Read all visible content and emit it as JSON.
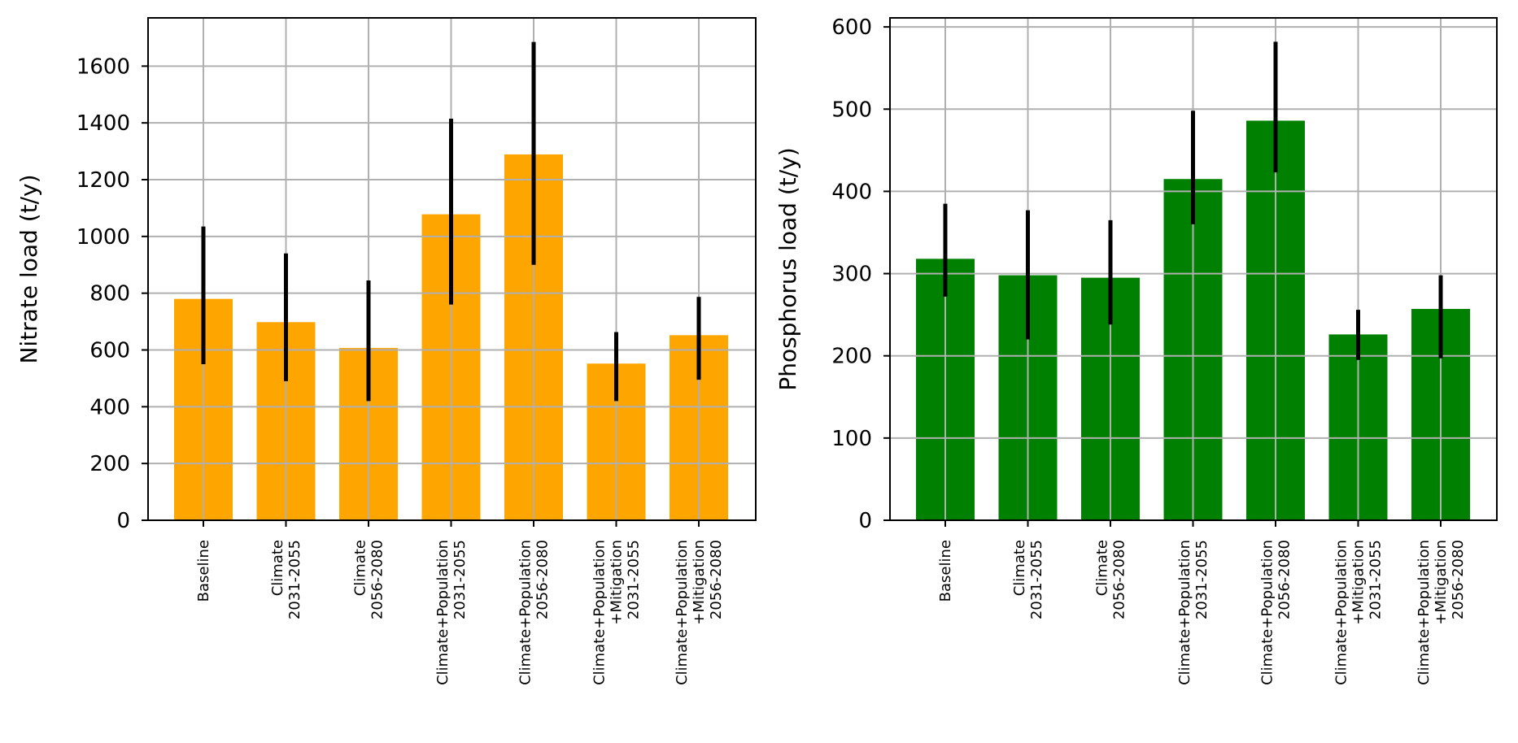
{
  "chart_data": [
    {
      "type": "bar",
      "ylabel": "Nitrate load (t/y)",
      "xlabel": "",
      "title": "",
      "ylim": [
        0,
        1770
      ],
      "yticks": [
        0,
        200,
        400,
        600,
        800,
        1000,
        1200,
        1400,
        1600
      ],
      "grid": true,
      "bar_color": "#FFA500",
      "errorbar_color": "#000000",
      "categories": [
        [
          "Baseline"
        ],
        [
          "Climate",
          "2031-2055"
        ],
        [
          "Climate",
          "2056-2080"
        ],
        [
          "Climate+Population",
          "2031-2055"
        ],
        [
          "Climate+Population",
          "2056-2080"
        ],
        [
          "Climate+Population",
          "+Mitigation",
          "2031-2055"
        ],
        [
          "Climate+Population",
          "+Mitigation",
          "2056-2080"
        ]
      ],
      "values": [
        780,
        698,
        607,
        1078,
        1289,
        552,
        652
      ],
      "error_low": [
        550,
        490,
        420,
        760,
        900,
        420,
        495
      ],
      "error_high": [
        1035,
        940,
        845,
        1415,
        1685,
        663,
        787
      ]
    },
    {
      "type": "bar",
      "ylabel": "Phosphorus load (t/y)",
      "xlabel": "",
      "title": "",
      "ylim": [
        0,
        611
      ],
      "yticks": [
        0,
        100,
        200,
        300,
        400,
        500,
        600
      ],
      "grid": true,
      "bar_color": "#008000",
      "errorbar_color": "#000000",
      "categories": [
        [
          "Baseline"
        ],
        [
          "Climate",
          "2031-2055"
        ],
        [
          "Climate",
          "2056-2080"
        ],
        [
          "Climate+Population",
          "2031-2055"
        ],
        [
          "Climate+Population",
          "2056-2080"
        ],
        [
          "Climate+Population",
          "+Mitigation",
          "2031-2055"
        ],
        [
          "Climate+Population",
          "+Mitigation",
          "2056-2080"
        ]
      ],
      "values": [
        318,
        298,
        295,
        415,
        486,
        226,
        257
      ],
      "error_low": [
        272,
        220,
        238,
        360,
        423,
        195,
        197
      ],
      "error_high": [
        385,
        377,
        365,
        498,
        582,
        256,
        298
      ]
    }
  ]
}
